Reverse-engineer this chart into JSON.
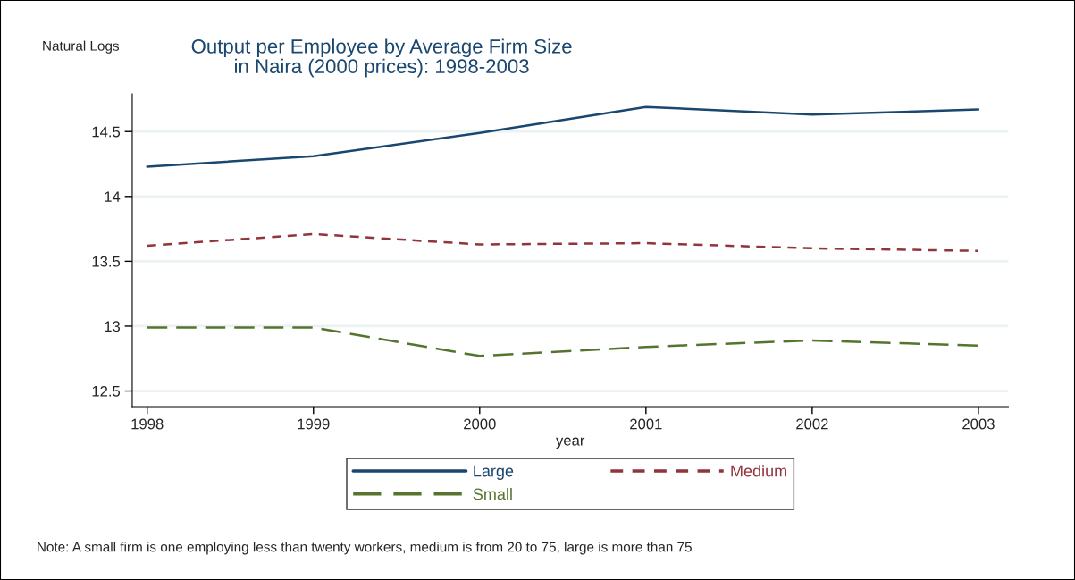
{
  "chart_data": {
    "type": "line",
    "title": "Output per Employee by Average Firm Size\nin Naira (2000 prices): 1998-2003",
    "ylabel": "Natural Logs",
    "xlabel": "year",
    "x": [
      1998,
      1999,
      2000,
      2001,
      2002,
      2003
    ],
    "series": [
      {
        "name": "Large",
        "color": "#1a476f",
        "line_style": "solid",
        "values": [
          14.23,
          14.31,
          14.49,
          14.69,
          14.63,
          14.67
        ]
      },
      {
        "name": "Medium",
        "color": "#90353b",
        "line_style": "dashed",
        "values": [
          13.62,
          13.71,
          13.63,
          13.64,
          13.6,
          13.58
        ]
      },
      {
        "name": "Small",
        "color": "#55752f",
        "line_style": "dashed",
        "values": [
          12.99,
          12.99,
          12.77,
          12.84,
          12.89,
          12.85
        ]
      }
    ],
    "xlim": [
      1997.91,
      2003.18
    ],
    "xticks": [
      1998,
      1999,
      2000,
      2001,
      2002,
      2003
    ],
    "ylim": [
      12.38,
      14.79
    ],
    "yticks": [
      12.5,
      13,
      13.5,
      14,
      14.5
    ],
    "grid": "y",
    "legend": "bottom",
    "marker": "none",
    "annotations": [
      "Note: A small firm is one employing less than twenty workers, medium is from 20 to 75, large is more than 75"
    ]
  }
}
